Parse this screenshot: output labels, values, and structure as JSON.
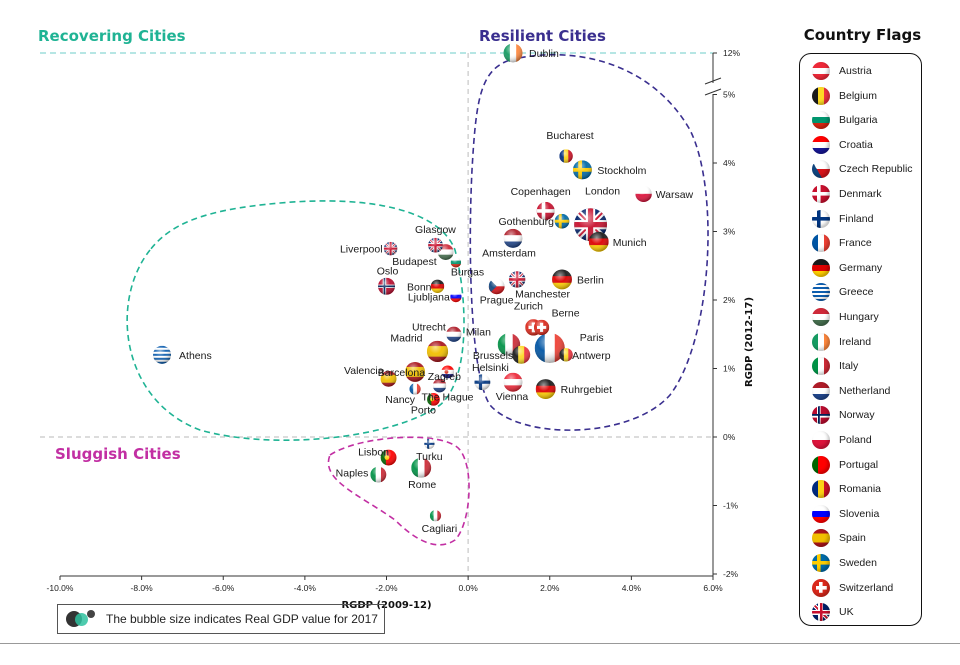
{
  "clusters": {
    "recovering": {
      "label": "Recovering Cities",
      "color": "#1fb394"
    },
    "resilient": {
      "label": "Resilient Cities",
      "color": "#3a2f8f"
    },
    "sluggish": {
      "label": "Sluggish Cities",
      "color": "#c22fa3"
    }
  },
  "chart_data": {
    "type": "scatter",
    "subtype": "bubble",
    "title": "",
    "xlabel": "RGDP (2009-12)",
    "ylabel": "RGDP (2012-17)",
    "xlim": [
      -10,
      6
    ],
    "ylim": [
      -2,
      12
    ],
    "y_axis_break": [
      5,
      12
    ],
    "x_ticks": [
      -10,
      -8,
      -6,
      -4,
      -2,
      0,
      2,
      4,
      6
    ],
    "x_tick_labels": [
      "-10.0%",
      "-8.0%",
      "-6.0%",
      "-4.0%",
      "-2.0%",
      "0.0%",
      "2.0%",
      "4.0%",
      "6.0%"
    ],
    "y_ticks": [
      -2,
      -1,
      0,
      1,
      2,
      3,
      4,
      5,
      12
    ],
    "y_tick_labels": [
      "-2%",
      "-1%",
      "0%",
      "1%",
      "2%",
      "3%",
      "4%",
      "5%",
      "12%"
    ],
    "size_note": "The bubble size indicates Real GDP value for 2017",
    "points": [
      {
        "city": "Dublin",
        "country": "Ireland",
        "x": 1.1,
        "y": 12.0,
        "size": 2
      },
      {
        "city": "Bucharest",
        "country": "Romania",
        "x": 2.4,
        "y": 4.1,
        "size": 1
      },
      {
        "city": "Stockholm",
        "country": "Sweden",
        "x": 2.8,
        "y": 3.9,
        "size": 2
      },
      {
        "city": "Warsaw",
        "country": "Poland",
        "x": 4.3,
        "y": 3.55,
        "size": 1.5
      },
      {
        "city": "Copenhagen",
        "country": "Denmark",
        "x": 1.9,
        "y": 3.3,
        "size": 1.8
      },
      {
        "city": "London",
        "country": "UK",
        "x": 3.0,
        "y": 3.1,
        "size": 6
      },
      {
        "city": "Gothenburg",
        "country": "Sweden",
        "x": 2.3,
        "y": 3.15,
        "size": 1.2
      },
      {
        "city": "Munich",
        "country": "Germany",
        "x": 3.2,
        "y": 2.85,
        "size": 2.2
      },
      {
        "city": "Amsterdam",
        "country": "Netherland",
        "x": 1.1,
        "y": 2.9,
        "size": 2
      },
      {
        "city": "Berlin",
        "country": "Germany",
        "x": 2.3,
        "y": 2.3,
        "size": 2.2
      },
      {
        "city": "Manchester",
        "country": "UK",
        "x": 1.2,
        "y": 2.3,
        "size": 1.5
      },
      {
        "city": "Prague",
        "country": "Czech Republic",
        "x": 0.7,
        "y": 2.2,
        "size": 1.4
      },
      {
        "city": "Zurich",
        "country": "Switzerland",
        "x": 1.6,
        "y": 1.6,
        "size": 1.5
      },
      {
        "city": "Berne",
        "country": "Switzerland",
        "x": 1.8,
        "y": 1.6,
        "size": 1.3
      },
      {
        "city": "Milan",
        "country": "Italy",
        "x": 1.0,
        "y": 1.35,
        "size": 2.8
      },
      {
        "city": "Paris",
        "country": "France",
        "x": 2.0,
        "y": 1.3,
        "size": 5
      },
      {
        "city": "Antwerp",
        "country": "Belgium",
        "x": 2.4,
        "y": 1.2,
        "size": 1
      },
      {
        "city": "Brussels",
        "country": "Belgium",
        "x": 1.3,
        "y": 1.2,
        "size": 1.8
      },
      {
        "city": "Helsinki",
        "country": "Finland",
        "x": 0.35,
        "y": 0.8,
        "size": 1.4
      },
      {
        "city": "Vienna",
        "country": "Austria",
        "x": 1.1,
        "y": 0.8,
        "size": 2
      },
      {
        "city": "Ruhrgebiet",
        "country": "Germany",
        "x": 1.9,
        "y": 0.7,
        "size": 2.2
      },
      {
        "city": "Glasgow",
        "country": "UK",
        "x": -0.8,
        "y": 2.8,
        "size": 1.2
      },
      {
        "city": "Liverpool",
        "country": "UK",
        "x": -1.9,
        "y": 2.75,
        "size": 1
      },
      {
        "city": "Budapest",
        "country": "Hungary",
        "x": -0.55,
        "y": 2.7,
        "size": 1.4
      },
      {
        "city": "Burgas",
        "country": "Bulgaria",
        "x": -0.3,
        "y": 2.55,
        "size": 0.6
      },
      {
        "city": "Oslo",
        "country": "Norway",
        "x": -2.0,
        "y": 2.2,
        "size": 1.6
      },
      {
        "city": "Bonn",
        "country": "Germany",
        "x": -0.75,
        "y": 2.2,
        "size": 1
      },
      {
        "city": "Ljubljana",
        "country": "Slovenia",
        "x": -0.3,
        "y": 2.05,
        "size": 0.7
      },
      {
        "city": "Athens",
        "country": "Greece",
        "x": -7.5,
        "y": 1.2,
        "size": 1.8
      },
      {
        "city": "Utrecht",
        "country": "Netherland",
        "x": -0.35,
        "y": 1.5,
        "size": 1.3
      },
      {
        "city": "Madrid",
        "country": "Spain",
        "x": -0.75,
        "y": 1.25,
        "size": 2.5
      },
      {
        "city": "Barcelona",
        "country": "Spain",
        "x": -1.3,
        "y": 0.95,
        "size": 2.2
      },
      {
        "city": "Valencia",
        "country": "Spain",
        "x": -1.95,
        "y": 0.85,
        "size": 1.4
      },
      {
        "city": "Zagreb",
        "country": "Croatia",
        "x": -0.5,
        "y": 0.95,
        "size": 0.9
      },
      {
        "city": "The Hague",
        "country": "Netherland",
        "x": -0.7,
        "y": 0.75,
        "size": 1
      },
      {
        "city": "Nancy",
        "country": "France",
        "x": -1.3,
        "y": 0.7,
        "size": 0.7
      },
      {
        "city": "Porto",
        "country": "Portugal",
        "x": -0.85,
        "y": 0.55,
        "size": 0.9
      },
      {
        "city": "Turku",
        "country": "Finland",
        "x": -0.95,
        "y": -0.1,
        "size": 0.6
      },
      {
        "city": "Lisbon",
        "country": "Portugal",
        "x": -1.95,
        "y": -0.3,
        "size": 1.4
      },
      {
        "city": "Rome",
        "country": "Italy",
        "x": -1.15,
        "y": -0.45,
        "size": 2.2
      },
      {
        "city": "Naples",
        "country": "Italy",
        "x": -2.2,
        "y": -0.55,
        "size": 1.4
      },
      {
        "city": "Cagliari",
        "country": "Italy",
        "x": -0.8,
        "y": -1.15,
        "size": 0.7
      }
    ]
  },
  "legend": {
    "title": "Country Flags",
    "items": [
      {
        "name": "Austria",
        "flag": "austria-flag-icon"
      },
      {
        "name": "Belgium",
        "flag": "belgium-flag-icon"
      },
      {
        "name": "Bulgaria",
        "flag": "bulgaria-flag-icon"
      },
      {
        "name": "Croatia",
        "flag": "croatia-flag-icon"
      },
      {
        "name": "Czech Republic",
        "flag": "czech-flag-icon"
      },
      {
        "name": "Denmark",
        "flag": "denmark-flag-icon"
      },
      {
        "name": "Finland",
        "flag": "finland-flag-icon"
      },
      {
        "name": "France",
        "flag": "france-flag-icon"
      },
      {
        "name": "Germany",
        "flag": "germany-flag-icon"
      },
      {
        "name": "Greece",
        "flag": "greece-flag-icon"
      },
      {
        "name": "Hungary",
        "flag": "hungary-flag-icon"
      },
      {
        "name": "Ireland",
        "flag": "ireland-flag-icon"
      },
      {
        "name": "Italy",
        "flag": "italy-flag-icon"
      },
      {
        "name": "Netherland",
        "flag": "netherland-flag-icon"
      },
      {
        "name": "Norway",
        "flag": "norway-flag-icon"
      },
      {
        "name": "Poland",
        "flag": "poland-flag-icon"
      },
      {
        "name": "Portugal",
        "flag": "portugal-flag-icon"
      },
      {
        "name": "Romania",
        "flag": "romania-flag-icon"
      },
      {
        "name": "Slovenia",
        "flag": "slovenia-flag-icon"
      },
      {
        "name": "Spain",
        "flag": "spain-flag-icon"
      },
      {
        "name": "Sweden",
        "flag": "sweden-flag-icon"
      },
      {
        "name": "Switzerland",
        "flag": "switzerland-flag-icon"
      },
      {
        "name": "UK",
        "flag": "uk-flag-icon"
      }
    ]
  },
  "note": {
    "text": "The bubble size indicates Real GDP value for 2017",
    "icon": "bubble-size-icon"
  }
}
